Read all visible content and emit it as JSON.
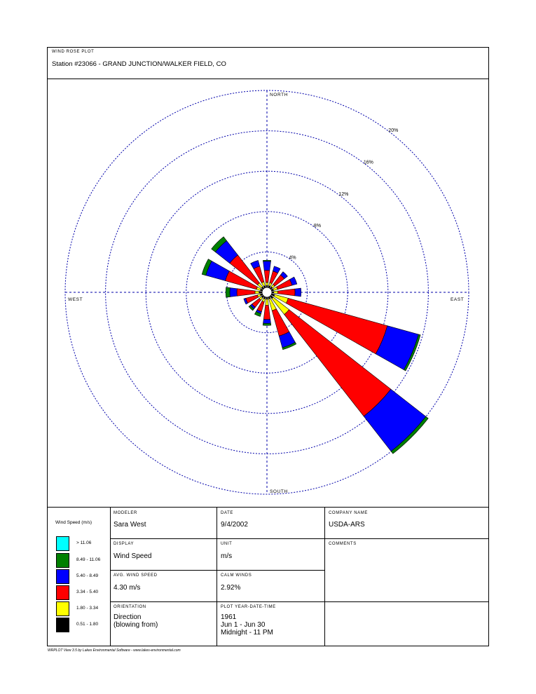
{
  "header": {
    "label": "WIND ROSE PLOT",
    "station": "Station #23066 - GRAND JUNCTION/WALKER FIELD, CO"
  },
  "chart_data": {
    "type": "wind-rose",
    "directions": [
      "N",
      "NNE",
      "NE",
      "ENE",
      "E",
      "ESE",
      "SE",
      "SSE",
      "S",
      "SSW",
      "SW",
      "WSW",
      "W",
      "WNW",
      "NW",
      "NNW"
    ],
    "direction_degrees": [
      0,
      22.5,
      45,
      67.5,
      90,
      112.5,
      135,
      157.5,
      180,
      202.5,
      225,
      247.5,
      270,
      292.5,
      315,
      337.5
    ],
    "speed_bins": [
      "0.51 - 1.80",
      "1.80 - 3.34",
      "3.34 - 5.40",
      "5.40 - 8.49",
      "8.49 - 11.06",
      "> 11.06"
    ],
    "frequencies_percent": [
      [
        0.2,
        0.3,
        1.2,
        0.9,
        0.1,
        0.0
      ],
      [
        0.2,
        0.3,
        1.2,
        0.5,
        0.0,
        0.0
      ],
      [
        0.2,
        0.3,
        1.2,
        0.4,
        0.0,
        0.0
      ],
      [
        0.2,
        0.4,
        1.5,
        0.5,
        0.0,
        0.0
      ],
      [
        0.2,
        0.4,
        1.7,
        0.6,
        0.0,
        0.0
      ],
      [
        0.3,
        1.4,
        10.2,
        3.2,
        0.2,
        0.0
      ],
      [
        0.3,
        2.0,
        12.8,
        4.4,
        0.3,
        0.0
      ],
      [
        0.2,
        1.2,
        2.6,
        1.2,
        0.2,
        0.0
      ],
      [
        0.2,
        0.6,
        1.4,
        0.4,
        0.2,
        0.0
      ],
      [
        0.2,
        0.3,
        1.0,
        0.2,
        0.3,
        0.0
      ],
      [
        0.2,
        0.3,
        0.9,
        0.2,
        0.2,
        0.0
      ],
      [
        0.2,
        0.3,
        1.2,
        0.2,
        0.0,
        0.0
      ],
      [
        0.3,
        0.4,
        1.8,
        0.7,
        0.4,
        0.0
      ],
      [
        0.2,
        0.4,
        3.2,
        2.0,
        0.4,
        0.0
      ],
      [
        0.2,
        0.5,
        3.5,
        1.8,
        0.5,
        0.0
      ],
      [
        0.2,
        0.4,
        1.6,
        0.6,
        0.0,
        0.0
      ]
    ],
    "rings_percent": [
      4,
      8,
      12,
      16,
      20
    ],
    "ring_labels": [
      "4%",
      "8%",
      "12%",
      "16%",
      "20%"
    ],
    "compass_labels": {
      "north": "NORTH",
      "south": "SOUTH",
      "east": "EAST",
      "west": "WEST"
    },
    "colors": {
      "bin_colors": [
        "#000000",
        "#ffff00",
        "#ff0000",
        "#0000ff",
        "#008000",
        "#00ffff"
      ],
      "grid": "#0000aa"
    }
  },
  "legend": {
    "title": "Wind Speed (m/s)",
    "items": [
      {
        "label": "> 11.06",
        "color": "#00ffff"
      },
      {
        "label": "8.49 - 11.06",
        "color": "#008000"
      },
      {
        "label": "5.40 - 8.49",
        "color": "#0000ff"
      },
      {
        "label": "3.34 - 5.40",
        "color": "#ff0000"
      },
      {
        "label": "1.80 - 3.34",
        "color": "#ffff00"
      },
      {
        "label": "0.51 - 1.80",
        "color": "#000000"
      }
    ]
  },
  "info": {
    "modeler_label": "MODELER",
    "modeler": "Sara West",
    "date_label": "DATE",
    "date": "9/4/2002",
    "company_label": "COMPANY NAME",
    "company": "USDA-ARS",
    "display_label": "DISPLAY",
    "display": "Wind Speed",
    "unit_label": "UNIT",
    "unit": "m/s",
    "comments_label": "COMMENTS",
    "avg_label": "AVG. WIND SPEED",
    "avg": "4.30 m/s",
    "calm_label": "CALM WINDS",
    "calm": "2.92%",
    "orientation_label": "ORIENTATION",
    "orientation_1": "Direction",
    "orientation_2": "(blowing from)",
    "plot_label": "PLOT YEAR-DATE-TIME",
    "plot_year": "1961",
    "plot_date": "Jun 1 - Jun 30",
    "plot_time": "Midnight - 11 PM"
  },
  "footer": "WRPLOT View 3.5 by Lakes Environmental Software - www.lakes-environmental.com"
}
